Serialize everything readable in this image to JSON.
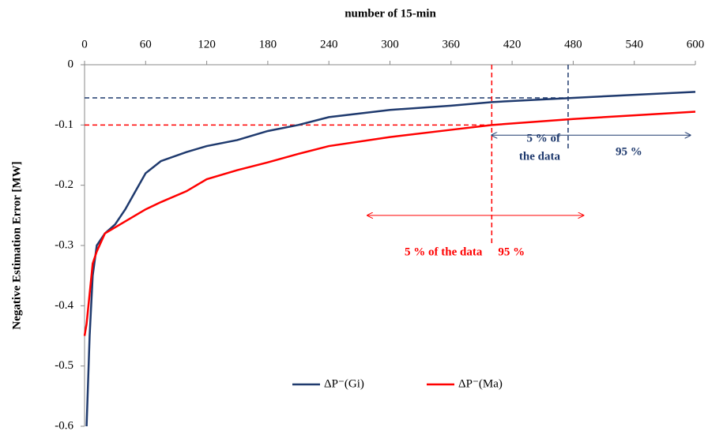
{
  "chart_data": {
    "type": "line",
    "x_title": "number of 15-min",
    "y_title": "Negative Estimation Error [MW]",
    "x": [
      0,
      2,
      5,
      8,
      12,
      20,
      30,
      40,
      50,
      60,
      75,
      100,
      120,
      150,
      180,
      210,
      240,
      300,
      360,
      400,
      480,
      540,
      600
    ],
    "series": [
      {
        "name": "ΔP⁻(Gi)",
        "color": "#1f3a6e",
        "values": [
          null,
          -0.6,
          -0.45,
          -0.35,
          -0.3,
          -0.28,
          -0.265,
          -0.24,
          -0.21,
          -0.18,
          -0.16,
          -0.145,
          -0.135,
          -0.125,
          -0.11,
          -0.1,
          -0.087,
          -0.075,
          -0.068,
          -0.062,
          -0.055,
          -0.05,
          -0.045
        ]
      },
      {
        "name": "ΔP⁻(Ma)",
        "color": "#ff0000",
        "values": [
          -0.45,
          -0.43,
          -0.38,
          -0.33,
          -0.31,
          -0.28,
          -0.27,
          -0.26,
          -0.25,
          -0.24,
          -0.228,
          -0.21,
          -0.19,
          -0.175,
          -0.162,
          -0.148,
          -0.135,
          -0.12,
          -0.108,
          -0.1,
          -0.09,
          -0.084,
          -0.078
        ]
      }
    ],
    "xlim": [
      0,
      600
    ],
    "xticks": [
      0,
      60,
      120,
      180,
      240,
      300,
      360,
      420,
      480,
      540,
      600
    ],
    "ylim": [
      -0.6,
      0
    ],
    "yticks": [
      0,
      -0.1,
      -0.2,
      -0.3,
      -0.4,
      -0.5,
      -0.6
    ],
    "annotations": [
      {
        "x": 475,
        "y": -0.055,
        "color": "#1f3a6e",
        "vline_end": -0.14,
        "arrow": [
          400,
          595
        ],
        "arrow_y": -0.117,
        "left_label": [
          "5 % of",
          "the data"
        ],
        "right_label": "95 %"
      },
      {
        "x": 400,
        "y": -0.1,
        "color": "#ff0000",
        "vline_end": -0.3,
        "arrow": [
          278,
          490
        ],
        "arrow_y": -0.25,
        "left_label": [
          "5 % of the data"
        ],
        "right_label": "95 %"
      }
    ],
    "legend": "bottom"
  }
}
